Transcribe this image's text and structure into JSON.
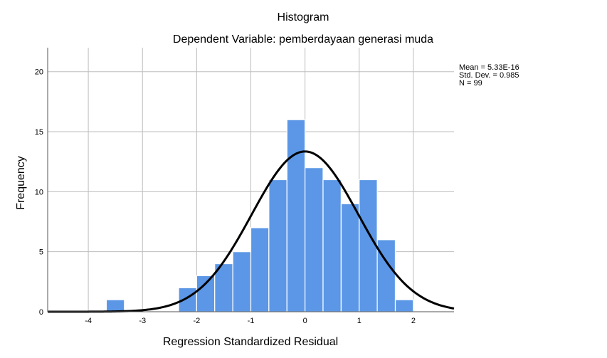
{
  "chart_data": {
    "type": "bar",
    "title": "Histogram",
    "subtitle": "Dependent Variable: pemberdayaan generasi muda",
    "xlabel": "Regression Standardized Residual",
    "ylabel": "Frequency",
    "xlim": [
      -4.75,
      2.75
    ],
    "ylim": [
      0,
      22
    ],
    "x_ticks": [
      -4,
      -3,
      -2,
      -1,
      0,
      1,
      2
    ],
    "x_tick_labels": [
      "-4",
      "-3",
      "-2",
      "-1",
      "0",
      "1",
      "2"
    ],
    "y_ticks": [
      0,
      5,
      10,
      15,
      20
    ],
    "y_tick_labels": [
      "0",
      "5",
      "10",
      "15",
      "20"
    ],
    "grid": true,
    "bin_width": 0.333,
    "bins": [
      {
        "start": -3.667,
        "value": 1
      },
      {
        "start": -2.333,
        "value": 2
      },
      {
        "start": -2.0,
        "value": 3
      },
      {
        "start": -1.667,
        "value": 4
      },
      {
        "start": -1.333,
        "value": 5
      },
      {
        "start": -1.0,
        "value": 7
      },
      {
        "start": -0.667,
        "value": 11
      },
      {
        "start": -0.333,
        "value": 16
      },
      {
        "start": 0.0,
        "value": 12
      },
      {
        "start": 0.333,
        "value": 11
      },
      {
        "start": 0.667,
        "value": 9
      },
      {
        "start": 1.0,
        "value": 11
      },
      {
        "start": 1.333,
        "value": 6
      },
      {
        "start": 1.667,
        "value": 1
      }
    ],
    "normal_curve": {
      "mean": 0.0,
      "std": 0.985,
      "n": 99
    },
    "stats_lines": [
      "Mean = 5.33E-16",
      "Std. Dev. = 0.985",
      "N = 99"
    ],
    "bar_color": "#5b97e6",
    "curve_color": "#000000"
  }
}
